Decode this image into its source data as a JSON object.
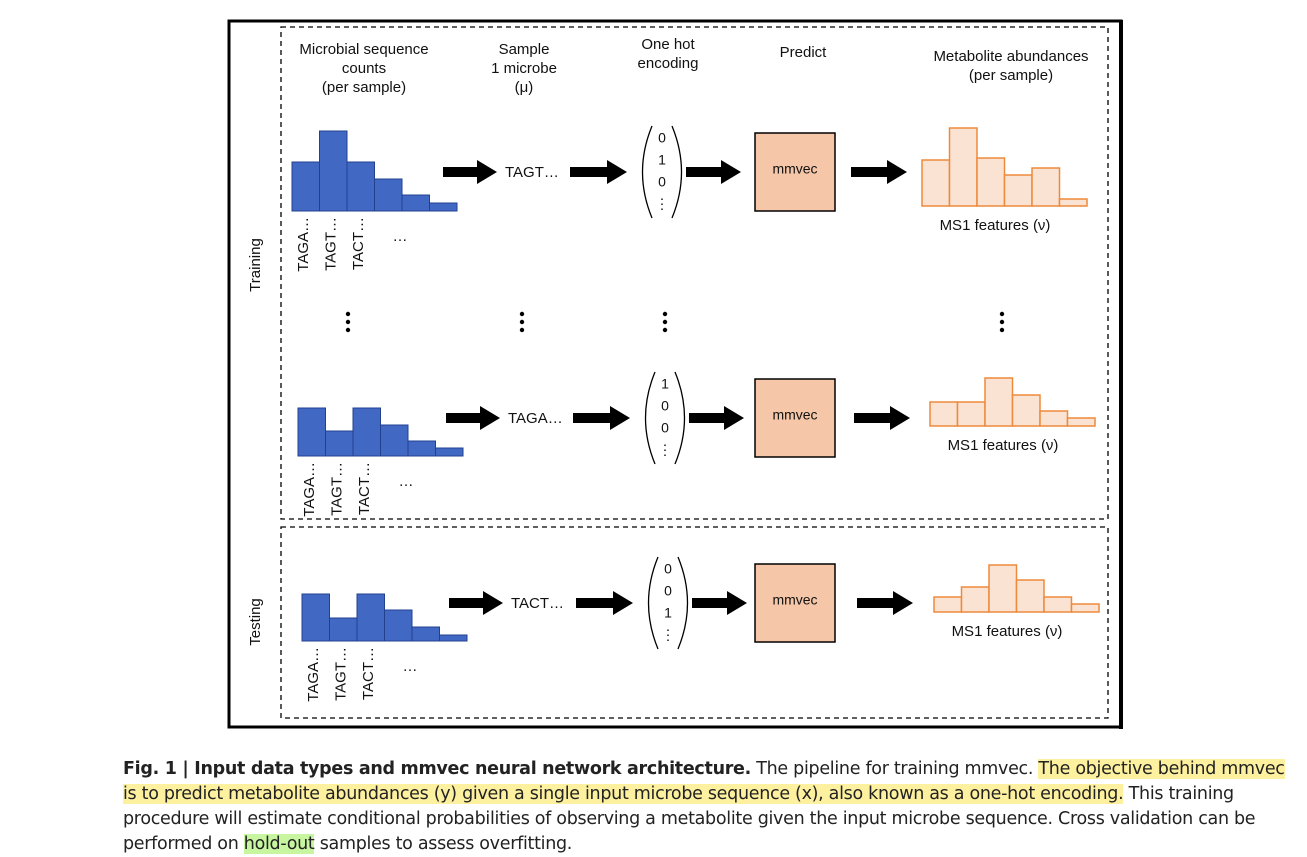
{
  "figure": {
    "headers": [
      [
        "Microbial sequence",
        "counts",
        "(per sample)"
      ],
      [
        "Sample",
        "1 microbe",
        "(μ)"
      ],
      [
        "One hot",
        "encoding"
      ],
      [
        "Predict"
      ],
      [
        "Metabolite abundances",
        "(per sample)"
      ]
    ],
    "sections": [
      "Training",
      "Testing"
    ],
    "rows": [
      {
        "sequences": [
          "TAGA…",
          "TAGT…",
          "TACT…",
          "…"
        ],
        "sampled": "TAGT…",
        "encoding": [
          "0",
          "1",
          "0",
          "⋮"
        ],
        "model": "mmvec",
        "output": "MS1 features (ν)"
      },
      {
        "sequences": [
          "TAGA…",
          "TAGT…",
          "TACT…",
          "…"
        ],
        "sampled": "TAGA…",
        "encoding": [
          "1",
          "0",
          "0",
          "⋮"
        ],
        "model": "mmvec",
        "output": "MS1 features (ν)"
      },
      {
        "sequences": [
          "TAGA…",
          "TAGT…",
          "TACT…",
          "…"
        ],
        "sampled": "TACT…",
        "encoding": [
          "0",
          "0",
          "1",
          "⋮"
        ],
        "model": "mmvec",
        "output": "MS1 features (ν)"
      }
    ]
  },
  "caption": {
    "label": "Fig. 1 | Input data types and mmvec neural network architecture.",
    "parts": [
      " The pipeline for training mmvec. ",
      "The objective behind mmvec is to predict metabolite abundances (y) given a single input microbe sequence (x), also known as a one-hot encoding.",
      " This training procedure will estimate conditional probabilities of observing a metabolite given the input microbe sequence. Cross validation can be performed on ",
      "hold-out",
      " samples to assess overfitting."
    ]
  }
}
